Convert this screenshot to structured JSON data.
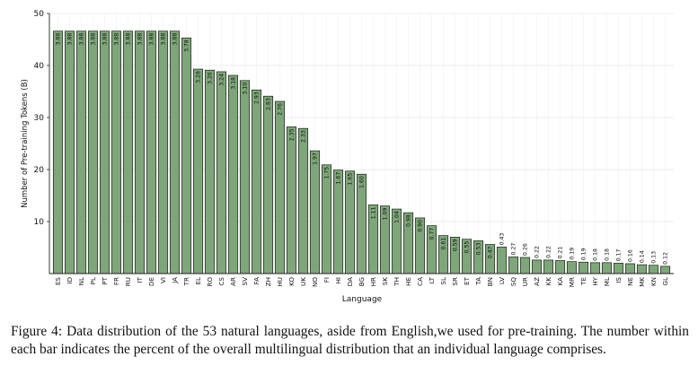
{
  "chart_data": {
    "type": "bar",
    "xlabel": "Language",
    "ylabel": "Number of Pre-training Tokens (B)",
    "ylim": [
      0,
      50
    ],
    "yticks": [
      10,
      20,
      30,
      40,
      50
    ],
    "grid": true,
    "bar_color": "#7fa67a",
    "bar_edge_color": "#1f1f1f",
    "categories": [
      "ES",
      "ID",
      "NL",
      "PL",
      "PT",
      "FR",
      "RU",
      "IT",
      "DE",
      "VI",
      "JA",
      "TR",
      "EL",
      "RO",
      "CS",
      "AR",
      "SV",
      "FA",
      "ZH",
      "HU",
      "KO",
      "UK",
      "NO",
      "FI",
      "HI",
      "DA",
      "BG",
      "HR",
      "SK",
      "TH",
      "HE",
      "CA",
      "LT",
      "SL",
      "SR",
      "ET",
      "TA",
      "BN",
      "LV",
      "SQ",
      "UR",
      "AZ",
      "KK",
      "KA",
      "MR",
      "TE",
      "HY",
      "ML",
      "IS",
      "NE",
      "MK",
      "KN",
      "GL"
    ],
    "values": [
      46.6,
      46.6,
      46.6,
      46.6,
      46.6,
      46.6,
      46.6,
      46.6,
      46.6,
      46.6,
      46.6,
      45.3,
      39.3,
      39.1,
      38.8,
      38.1,
      37.1,
      35.3,
      34.1,
      33.1,
      28.2,
      27.9,
      23.6,
      20.9,
      19.9,
      19.7,
      19.1,
      13.2,
      13.0,
      12.4,
      11.7,
      10.7,
      9.2,
      7.3,
      7.0,
      6.6,
      6.3,
      5.6,
      5.1,
      3.2,
      3.1,
      2.6,
      2.6,
      2.5,
      2.3,
      2.2,
      2.1,
      2.1,
      2.0,
      1.9,
      1.7,
      1.6,
      1.4
    ],
    "labels": [
      "3.88",
      "3.88",
      "3.88",
      "3.88",
      "3.88",
      "3.88",
      "3.88",
      "3.88",
      "3.88",
      "3.88",
      "3.88",
      "3.78",
      "3.28",
      "3.26",
      "3.24",
      "3.18",
      "3.10",
      "2.93",
      "2.83",
      "2.76",
      "2.35",
      "2.33",
      "1.97",
      "1.75",
      "1.67",
      "1.65",
      "1.60",
      "1.11",
      "1.09",
      "1.04",
      "0.98",
      "0.90",
      "0.77",
      "0.61",
      "0.59",
      "0.55",
      "0.53",
      "0.47",
      "0.43",
      "0.27",
      "0.26",
      "0.22",
      "0.22",
      "0.21",
      "0.19",
      "0.19",
      "0.18",
      "0.18",
      "0.17",
      "0.16",
      "0.14",
      "0.13",
      "0.12"
    ]
  },
  "caption": "Figure 4: Data distribution of the 53 natural languages, aside from English,we used for pre-training. The number within each bar indicates the percent of the overall multilingual distribution that an individual language comprises."
}
